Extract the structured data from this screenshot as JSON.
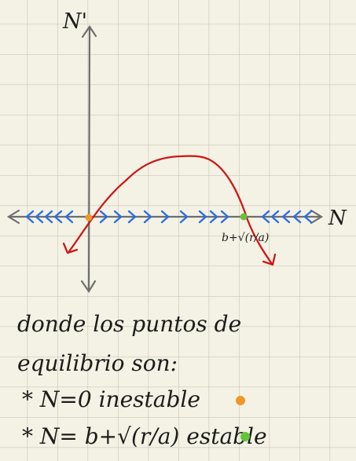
{
  "diagram": {
    "y_axis_label": "N'",
    "x_axis_label": "N",
    "equilibrium_label": "b+√(r/a)",
    "colors": {
      "grid": "#c9c8bb",
      "axis": "#6e6e6e",
      "curve": "#cc1818",
      "arrows": "#2a6ee8",
      "unstable": "#f0962a",
      "stable": "#66c43a",
      "text": "#1c1c1c"
    }
  },
  "notes": {
    "line1": "donde los puntos de",
    "line2": "equilibrio son:",
    "item1": "* N=0 inestable",
    "item2": "* N= b+√(r/a) estable"
  }
}
